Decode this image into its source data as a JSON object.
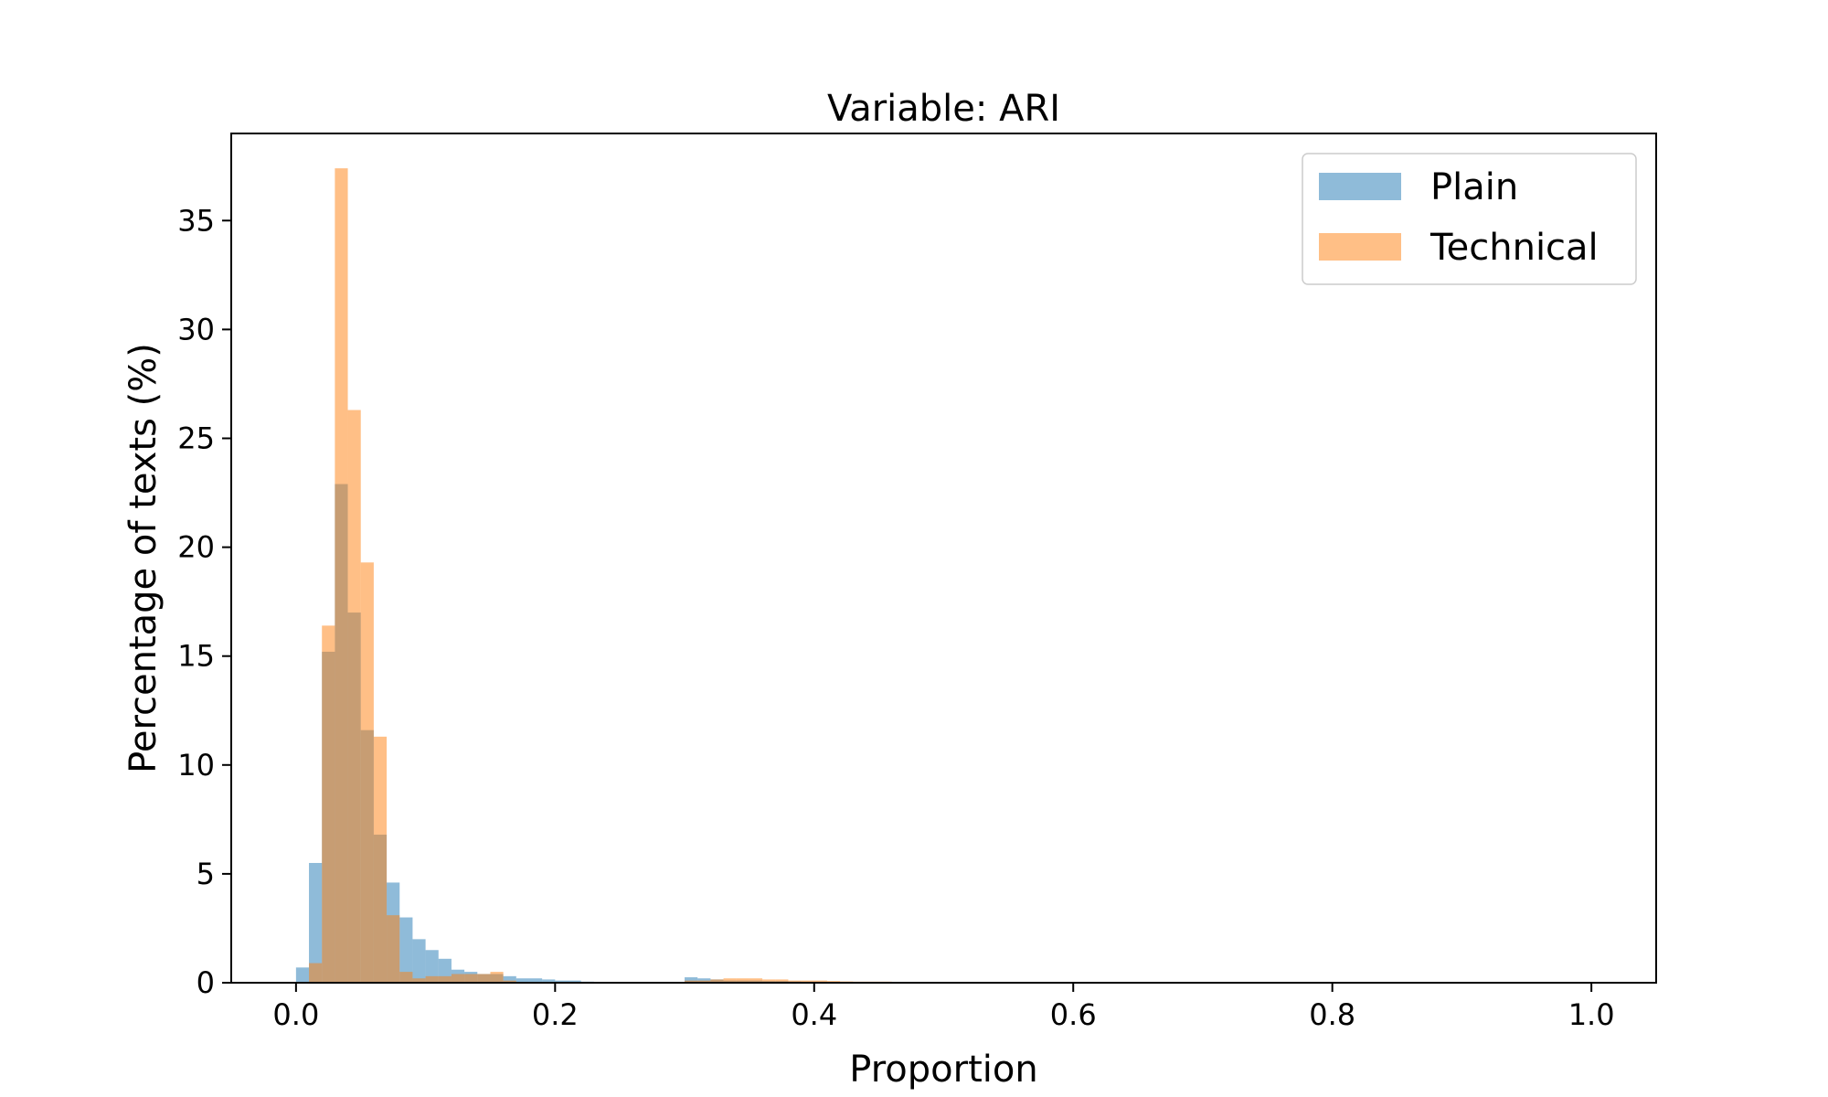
{
  "chart_data": {
    "type": "bar",
    "title": "Variable: ARI",
    "xlabel": "Proportion",
    "ylabel": "Percentage of texts (%)",
    "xlim": [
      -0.05,
      1.05
    ],
    "ylim": [
      0,
      39
    ],
    "xticks": [
      0.0,
      0.2,
      0.4,
      0.6,
      0.8,
      1.0
    ],
    "xtick_labels": [
      "0.0",
      "0.2",
      "0.4",
      "0.6",
      "0.8",
      "1.0"
    ],
    "yticks": [
      0,
      5,
      10,
      15,
      20,
      25,
      30,
      35
    ],
    "ytick_labels": [
      "0",
      "5",
      "10",
      "15",
      "20",
      "25",
      "30",
      "35"
    ],
    "grid": false,
    "legend_position": "top-right",
    "bin_width": 0.01,
    "series": [
      {
        "name": "Plain",
        "color": "#1f77b4",
        "opacity": 0.5,
        "bin_starts": [
          0.0,
          0.01,
          0.02,
          0.03,
          0.04,
          0.05,
          0.06,
          0.07,
          0.08,
          0.09,
          0.1,
          0.11,
          0.12,
          0.13,
          0.14,
          0.15,
          0.16,
          0.17,
          0.18,
          0.19,
          0.2,
          0.21,
          0.22,
          0.3,
          0.31,
          0.32,
          0.33,
          0.34,
          0.35,
          0.36,
          0.37,
          0.38,
          0.39,
          0.4,
          0.41,
          0.42,
          0.43,
          0.44
        ],
        "values": [
          0.7,
          5.5,
          15.2,
          22.9,
          17.0,
          11.6,
          6.8,
          4.6,
          3.0,
          2.0,
          1.5,
          1.1,
          0.6,
          0.5,
          0.4,
          0.4,
          0.3,
          0.2,
          0.2,
          0.15,
          0.1,
          0.1,
          0.05,
          0.25,
          0.2,
          0.15,
          0.1,
          0.1,
          0.1,
          0.08,
          0.08,
          0.06,
          0.05,
          0.05,
          0.04,
          0.03,
          0.03,
          0.02
        ]
      },
      {
        "name": "Technical",
        "color": "#ff7f0e",
        "opacity": 0.5,
        "bin_starts": [
          0.01,
          0.02,
          0.03,
          0.04,
          0.05,
          0.06,
          0.07,
          0.08,
          0.09,
          0.1,
          0.11,
          0.12,
          0.13,
          0.14,
          0.15,
          0.16,
          0.3,
          0.31,
          0.32,
          0.33,
          0.34,
          0.35,
          0.36,
          0.37,
          0.38,
          0.39,
          0.4,
          0.41,
          0.42,
          0.43,
          0.44,
          0.45
        ],
        "values": [
          0.9,
          16.4,
          37.4,
          26.3,
          19.3,
          11.3,
          3.1,
          0.5,
          0.2,
          0.3,
          0.3,
          0.4,
          0.4,
          0.4,
          0.5,
          0.1,
          0.1,
          0.1,
          0.15,
          0.2,
          0.2,
          0.2,
          0.15,
          0.15,
          0.1,
          0.1,
          0.1,
          0.08,
          0.06,
          0.05,
          0.05,
          0.05
        ]
      }
    ]
  }
}
